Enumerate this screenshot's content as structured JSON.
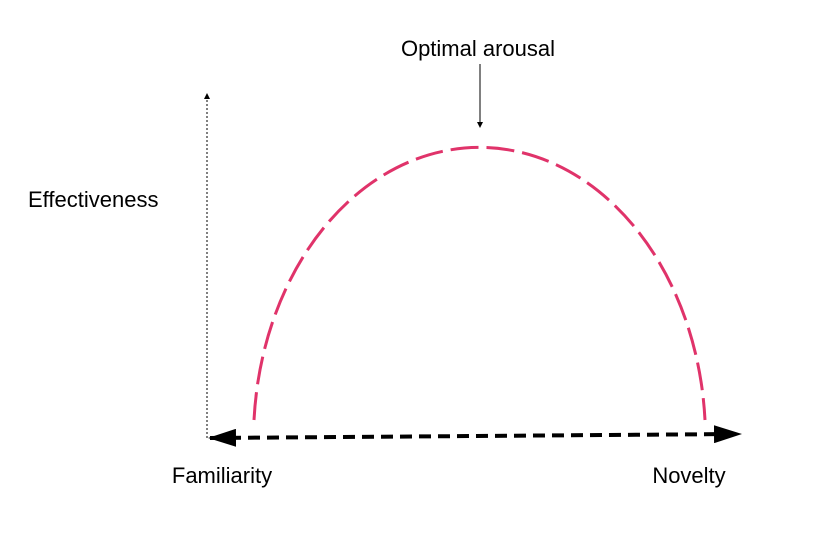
{
  "labels": {
    "annotation": "Optimal arousal",
    "y_axis": "Effectiveness",
    "x_left": "Familiarity",
    "x_right": "Novelty"
  }
}
